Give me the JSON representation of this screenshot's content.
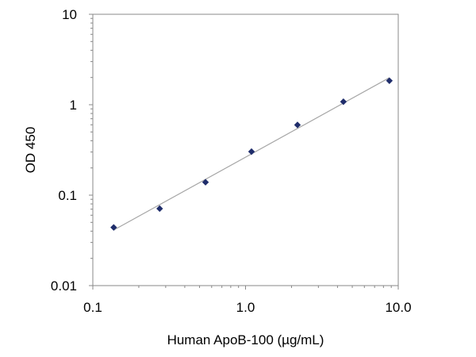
{
  "chart_data": {
    "type": "scatter",
    "x_scale": "log",
    "y_scale": "log",
    "xlabel": "Human ApoB-100 (µg/mL)",
    "ylabel": "OD 450",
    "xlim": [
      0.1,
      10.0
    ],
    "ylim": [
      0.01,
      10
    ],
    "x_tick_labels": [
      "0.1",
      "1.0",
      "10.0"
    ],
    "x_tick_values": [
      0.1,
      1.0,
      10.0
    ],
    "y_tick_labels": [
      "0.01",
      "0.1",
      "1",
      "10"
    ],
    "y_tick_values": [
      0.01,
      0.1,
      1,
      10
    ],
    "grid": false,
    "trendline": true,
    "series": [
      {
        "marker": "diamond",
        "color": "#1f2d6b",
        "x": [
          0.137,
          0.274,
          0.547,
          1.094,
          2.188,
          4.375,
          8.75
        ],
        "y": [
          0.044,
          0.071,
          0.139,
          0.303,
          0.598,
          1.08,
          1.84
        ]
      }
    ],
    "fit_color": "#a6a6a6"
  }
}
